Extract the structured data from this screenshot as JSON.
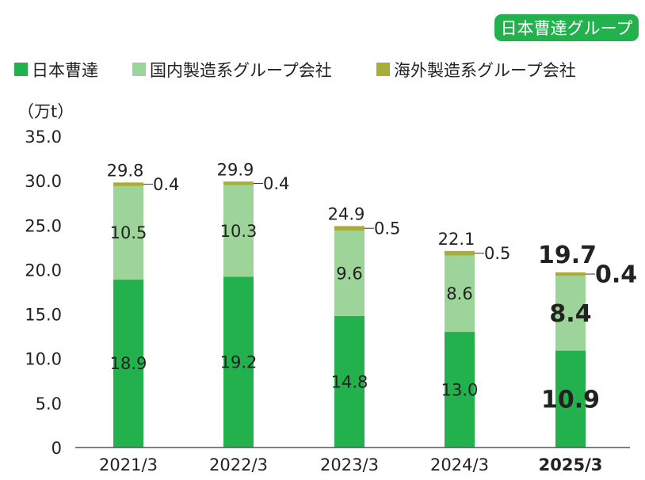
{
  "badge": "日本曹達グループ",
  "colors": {
    "nippon_soda": "#22b14c",
    "domestic": "#9dd49a",
    "overseas": "#a8ad38",
    "badge": "#22b14c"
  },
  "chart_data": {
    "type": "bar",
    "stacked": true,
    "unit_label": "（万t）",
    "categories": [
      "2021/3",
      "2022/3",
      "2023/3",
      "2024/3",
      "2025/3"
    ],
    "highlight_category": "2025/3",
    "series": [
      {
        "name": "日本曹達",
        "values": [
          18.9,
          19.2,
          14.8,
          13.0,
          10.9
        ]
      },
      {
        "name": "国内製造系グループ会社",
        "values": [
          10.5,
          10.3,
          9.6,
          8.6,
          8.4
        ]
      },
      {
        "name": "海外製造系グループ会社",
        "values": [
          0.4,
          0.4,
          0.5,
          0.5,
          0.4
        ]
      }
    ],
    "totals": [
      29.8,
      29.9,
      24.9,
      22.1,
      19.7
    ],
    "ylim": [
      0,
      35
    ],
    "yticks": [
      "0",
      "5.0",
      "10.0",
      "15.0",
      "20.0",
      "25.0",
      "30.0",
      "35.0"
    ],
    "legend_position": "top-left",
    "grid": false
  }
}
